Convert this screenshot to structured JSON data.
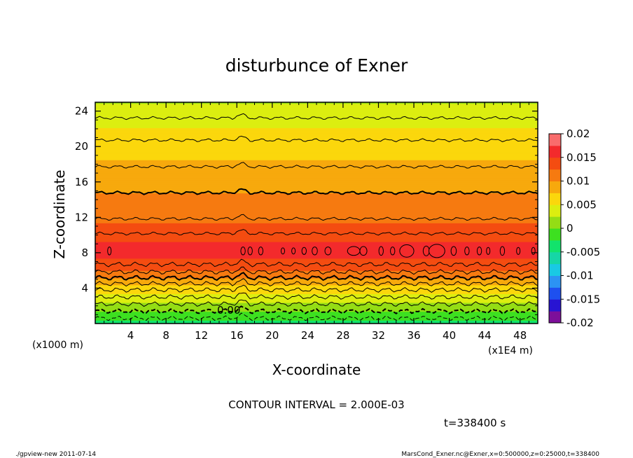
{
  "chart_data": {
    "type": "heatmap",
    "title": "disturbunce of Exner",
    "xlabel": "X-coordinate",
    "ylabel": "Z-coordinate",
    "x_unit": "(x1E4 m)",
    "y_unit": "(x1000 m)",
    "xlim": [
      0,
      50
    ],
    "ylim": [
      0,
      25
    ],
    "x_ticks": [
      "4",
      "8",
      "12",
      "16",
      "20",
      "24",
      "28",
      "32",
      "36",
      "40",
      "44",
      "48"
    ],
    "y_ticks": [
      "4",
      "8",
      "12",
      "16",
      "20",
      "24"
    ],
    "colorbar": {
      "min": -0.02,
      "max": 0.02,
      "tick_labels": [
        "0.02",
        "0.015",
        "0.01",
        "0.005",
        "0",
        "-0.005",
        "-0.01",
        "-0.015",
        "-0.02"
      ],
      "colors": [
        "#7d0f9a",
        "#2814d2",
        "#1e50ef",
        "#2c93f3",
        "#19c9e4",
        "#16d6a6",
        "#12e36c",
        "#3de020",
        "#94dd15",
        "#dcee10",
        "#fbd70c",
        "#f7a90d",
        "#f67a10",
        "#f44c11",
        "#f32a2c",
        "#f96c6c"
      ]
    },
    "profile_z": [
      0,
      1,
      2,
      3,
      4,
      5,
      6,
      7,
      8,
      9,
      10,
      11,
      12,
      14,
      16,
      18,
      20,
      22,
      23,
      24,
      25
    ],
    "profile_value": [
      -0.0035,
      -0.001,
      0.0015,
      0.004,
      0.0065,
      0.0095,
      0.0125,
      0.0147,
      0.0155,
      0.0152,
      0.0142,
      0.013,
      0.0118,
      0.0105,
      0.0092,
      0.0078,
      0.0065,
      0.0051,
      0.0042,
      0.0033,
      0.0024
    ],
    "contour_interval_value": 0.002,
    "contour_interval_text": "CONTOUR INTERVAL = 2.000E-03",
    "contour_label": "0.00",
    "time_text": "t=338400 s",
    "footer_left": "./gpview-new   2011-07-14",
    "footer_right": "MarsCond_Exner.nc@Exner,x=0:500000,z=0:25000,t=338400"
  }
}
